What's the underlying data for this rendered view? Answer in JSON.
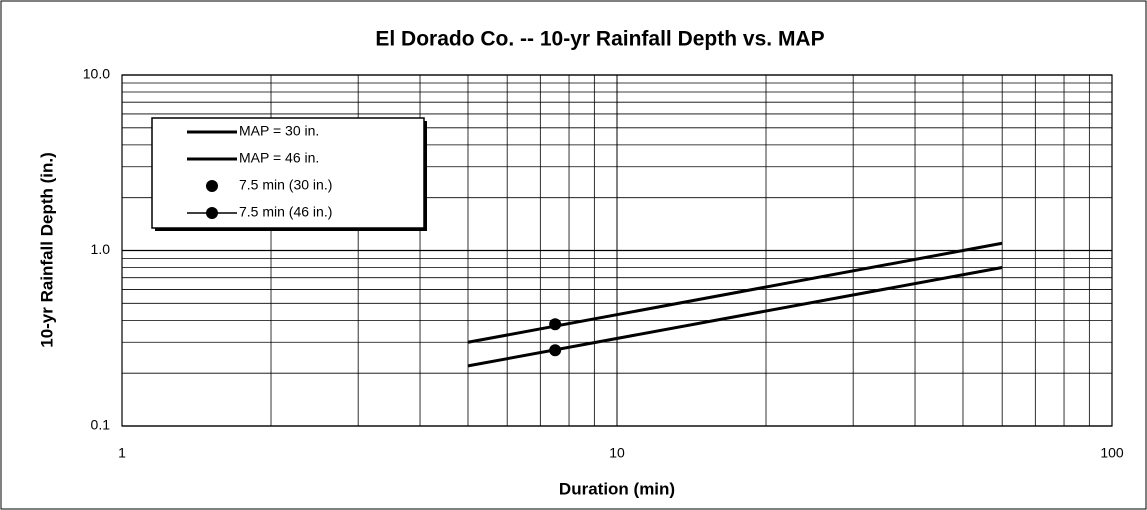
{
  "chart_data": {
    "type": "line",
    "title": "El Dorado Co. -- 10-yr Rainfall Depth vs. MAP",
    "x_label": "Duration (min)",
    "y_label": "10-yr Rainfall Depth (in.)",
    "xlog": true,
    "ylog": true,
    "grid": true,
    "minor_grid": true,
    "legend": "upper left",
    "xlim": [
      1,
      100
    ],
    "ylim": [
      0.1,
      10
    ],
    "xticks": [
      1,
      10,
      100
    ],
    "yticks": [
      {
        "value": 10,
        "label": "10.0"
      },
      {
        "value": 1,
        "label": "1.0"
      },
      0.1
    ],
    "series": [
      {
        "name": "MAP = 30 in.",
        "color": "#000000",
        "line": true,
        "marker": false,
        "x": [
          5,
          60
        ],
        "values": [
          0.22,
          0.8
        ]
      },
      {
        "name": "MAP = 46 in.",
        "color": "#000000",
        "line": true,
        "marker": false,
        "x": [
          5,
          60
        ],
        "values": [
          0.3,
          1.1
        ]
      },
      {
        "name": "7.5 min  (30 in.)",
        "color": "#000000",
        "line": false,
        "marker": true,
        "x": [
          7.5
        ],
        "values": [
          0.27
        ]
      },
      {
        "name": "7.5 min (46 in.)",
        "color": "#000000",
        "line": true,
        "marker": true,
        "x": [
          7.5
        ],
        "values": [
          0.38
        ]
      }
    ]
  }
}
